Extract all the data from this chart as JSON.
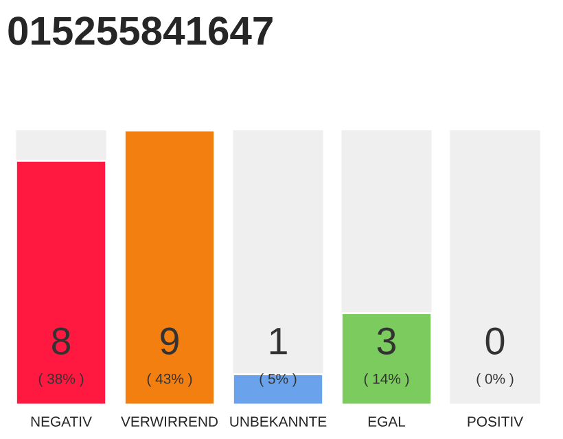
{
  "chart_data": {
    "type": "bar",
    "title": "015255841647",
    "categories": [
      "NEGATIV",
      "VERWIRREND",
      "UNBEKANNTE",
      "EGAL",
      "POSITIV"
    ],
    "values": [
      8,
      9,
      1,
      3,
      0
    ],
    "colors": [
      "#ff1940",
      "#f37f10",
      "#6aa3ec",
      "#7ccb5e",
      null
    ],
    "value_labels": [
      "8\n( 38% )",
      "9\n( 43% )",
      "1\n( 5% )",
      "3\n( 14% )",
      "0\n( 0% )"
    ],
    "tick_labels": "x"
  }
}
